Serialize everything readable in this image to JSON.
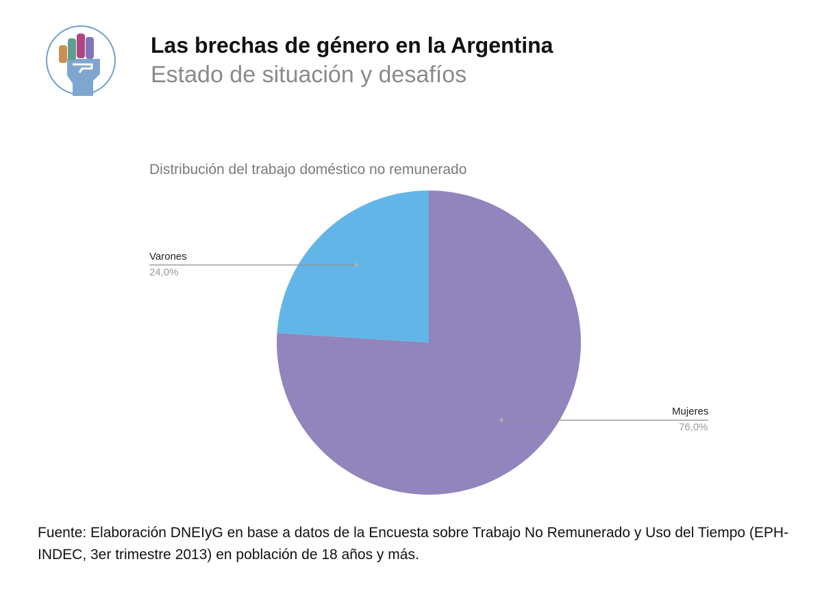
{
  "header": {
    "title": "Las brechas de género en la Argentina",
    "subtitle": "Estado de situación y desafíos"
  },
  "logo": {
    "icon": "raised-fist-icon",
    "colors": {
      "circle": "#6f9fcb",
      "fist": "#7ea6cf",
      "finger1": "#c98f4f",
      "finger2": "#5f9e8f",
      "finger3": "#b0457f",
      "finger4": "#7f75b6"
    }
  },
  "chart_data": {
    "type": "pie",
    "title": "Distribución del trabajo doméstico no remunerado",
    "slices": [
      {
        "label": "Mujeres",
        "value": 76.0,
        "value_label": "76,0%",
        "color": "#9284bc"
      },
      {
        "label": "Varones",
        "value": 24.0,
        "value_label": "24,0%",
        "color": "#62b6e7"
      }
    ],
    "start": "12 o'clock, clockwise",
    "legend": "leader-line labels beside slices"
  },
  "source": {
    "text": "Fuente: Elaboración DNEIyG en base a datos de la Encuesta sobre Trabajo No Remunerado y Uso del Tiempo (EPH-INDEC, 3er trimestre 2013) en población de 18 años y más."
  }
}
